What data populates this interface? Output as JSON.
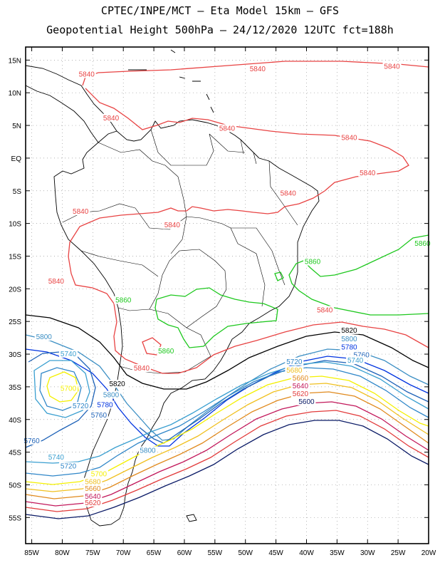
{
  "header": {
    "line1": "CPTEC/INPE/MCT –  Eta Model 15km – GFS",
    "line2": "Geopotential Height 500hPa – 24/12/2020 12UTC fct=188h"
  },
  "map": {
    "lon_range": [
      -86,
      -20
    ],
    "lat_range": [
      17,
      -59
    ],
    "lat_ticks": [
      {
        "value": 15,
        "label": "15N"
      },
      {
        "value": 10,
        "label": "10N"
      },
      {
        "value": 5,
        "label": "5N"
      },
      {
        "value": 0,
        "label": "EQ"
      },
      {
        "value": -5,
        "label": "5S"
      },
      {
        "value": -10,
        "label": "10S"
      },
      {
        "value": -15,
        "label": "15S"
      },
      {
        "value": -20,
        "label": "20S"
      },
      {
        "value": -25,
        "label": "25S"
      },
      {
        "value": -30,
        "label": "30S"
      },
      {
        "value": -35,
        "label": "35S"
      },
      {
        "value": -40,
        "label": "40S"
      },
      {
        "value": -45,
        "label": "45S"
      },
      {
        "value": -50,
        "label": "50S"
      },
      {
        "value": -55,
        "label": "55S"
      }
    ],
    "lon_ticks": [
      {
        "value": -85,
        "label": "85W"
      },
      {
        "value": -80,
        "label": "80W"
      },
      {
        "value": -75,
        "label": "75W"
      },
      {
        "value": -70,
        "label": "70W"
      },
      {
        "value": -65,
        "label": "65W"
      },
      {
        "value": -60,
        "label": "60W"
      },
      {
        "value": -55,
        "label": "55W"
      },
      {
        "value": -50,
        "label": "50W"
      },
      {
        "value": -45,
        "label": "45W"
      },
      {
        "value": -40,
        "label": "40W"
      },
      {
        "value": -35,
        "label": "35W"
      },
      {
        "value": -30,
        "label": "30W"
      },
      {
        "value": -25,
        "label": "25W"
      },
      {
        "value": -20,
        "label": "20W"
      }
    ],
    "colors": {
      "c5600": "#0a1a66",
      "c5620": "#e23b3b",
      "c5640": "#c2185b",
      "c5660": "#e08a1e",
      "c5680": "#f0c020",
      "c5700": "#f4f000",
      "c5720": "#2f86c8",
      "c5740": "#3a9fd0",
      "c5760": "#1f63b8",
      "c5780": "#0033e0",
      "c5800": "#3c8fc4",
      "c5820": "#000000",
      "c5840": "#e84343",
      "c5860": "#1ec81e",
      "coast": "#000000",
      "grid": "#9a9a9a"
    },
    "contour_labels": [
      {
        "value": "5840",
        "lon": -76,
        "lat": 12.6,
        "color_key": "c5840"
      },
      {
        "value": "5840",
        "lon": -48,
        "lat": 13.4,
        "color_key": "c5840"
      },
      {
        "value": "5840",
        "lon": -26,
        "lat": 13.8,
        "color_key": "c5840"
      },
      {
        "value": "5840",
        "lon": -72,
        "lat": 5.9,
        "color_key": "c5840"
      },
      {
        "value": "5840",
        "lon": -53,
        "lat": 4.3,
        "color_key": "c5840"
      },
      {
        "value": "5840",
        "lon": -33,
        "lat": 2.9,
        "color_key": "c5840"
      },
      {
        "value": "5840",
        "lon": -30,
        "lat": -2.5,
        "color_key": "c5840"
      },
      {
        "value": "5840",
        "lon": -43,
        "lat": -5.6,
        "color_key": "c5840"
      },
      {
        "value": "5840",
        "lon": -77,
        "lat": -8.4,
        "color_key": "c5840"
      },
      {
        "value": "5840",
        "lon": -62,
        "lat": -10.5,
        "color_key": "c5840"
      },
      {
        "value": "5840",
        "lon": -81,
        "lat": -19.1,
        "color_key": "c5840"
      },
      {
        "value": "5840",
        "lon": -37,
        "lat": -23.5,
        "color_key": "c5840"
      },
      {
        "value": "5840",
        "lon": -67,
        "lat": -32.4,
        "color_key": "c5840"
      },
      {
        "value": "5860",
        "lon": -39,
        "lat": -16.1,
        "color_key": "c5860"
      },
      {
        "value": "5860",
        "lon": -21,
        "lat": -13.3,
        "color_key": "c5860"
      },
      {
        "value": "5860",
        "lon": -70,
        "lat": -22.0,
        "color_key": "c5860"
      },
      {
        "value": "5860",
        "lon": -63,
        "lat": -29.8,
        "color_key": "c5860"
      },
      {
        "value": "5820",
        "lon": -33,
        "lat": -26.6,
        "color_key": "c5820"
      },
      {
        "value": "5820",
        "lon": -71,
        "lat": -34.8,
        "color_key": "c5820"
      },
      {
        "value": "5800",
        "lon": -33,
        "lat": -27.9,
        "color_key": "c5800"
      },
      {
        "value": "5800",
        "lon": -83,
        "lat": -27.6,
        "color_key": "c5800"
      },
      {
        "value": "5800",
        "lon": -72,
        "lat": -36.5,
        "color_key": "c5800"
      },
      {
        "value": "5800",
        "lon": -66,
        "lat": -45.0,
        "color_key": "c5800"
      },
      {
        "value": "5780",
        "lon": -33,
        "lat": -29.2,
        "color_key": "c5780"
      },
      {
        "value": "5780",
        "lon": -73,
        "lat": -38.0,
        "color_key": "c5780"
      },
      {
        "value": "5760",
        "lon": -31,
        "lat": -30.4,
        "color_key": "c5760"
      },
      {
        "value": "5760",
        "lon": -74,
        "lat": -39.6,
        "color_key": "c5760"
      },
      {
        "value": "5760",
        "lon": -85,
        "lat": -43.5,
        "color_key": "c5760"
      },
      {
        "value": "5740",
        "lon": -32,
        "lat": -31.2,
        "color_key": "c5740"
      },
      {
        "value": "5740",
        "lon": -79,
        "lat": -30.2,
        "color_key": "c5740"
      },
      {
        "value": "5740",
        "lon": -81,
        "lat": -46.0,
        "color_key": "c5740"
      },
      {
        "value": "5720",
        "lon": -42,
        "lat": -31.4,
        "color_key": "c5720"
      },
      {
        "value": "5720",
        "lon": -77,
        "lat": -38.2,
        "color_key": "c5720"
      },
      {
        "value": "5720",
        "lon": -79,
        "lat": -47.4,
        "color_key": "c5720"
      },
      {
        "value": "5700",
        "lon": -79,
        "lat": -35.5,
        "color_key": "c5700"
      },
      {
        "value": "5700",
        "lon": -74,
        "lat": -48.6,
        "color_key": "c5700"
      },
      {
        "value": "5680",
        "lon": -75,
        "lat": -49.8,
        "color_key": "c5680"
      },
      {
        "value": "5680",
        "lon": -42,
        "lat": -32.7,
        "color_key": "c5680"
      },
      {
        "value": "5660",
        "lon": -75,
        "lat": -50.8,
        "color_key": "c5660"
      },
      {
        "value": "5660",
        "lon": -41,
        "lat": -33.9,
        "color_key": "c5660"
      },
      {
        "value": "5640",
        "lon": -41,
        "lat": -35.1,
        "color_key": "c5640"
      },
      {
        "value": "5640",
        "lon": -75,
        "lat": -52.0,
        "color_key": "c5640"
      },
      {
        "value": "5620",
        "lon": -41,
        "lat": -36.3,
        "color_key": "c5620"
      },
      {
        "value": "5620",
        "lon": -75,
        "lat": -53.0,
        "color_key": "c5620"
      },
      {
        "value": "5600",
        "lon": -40,
        "lat": -37.5,
        "color_key": "c5600"
      }
    ]
  }
}
